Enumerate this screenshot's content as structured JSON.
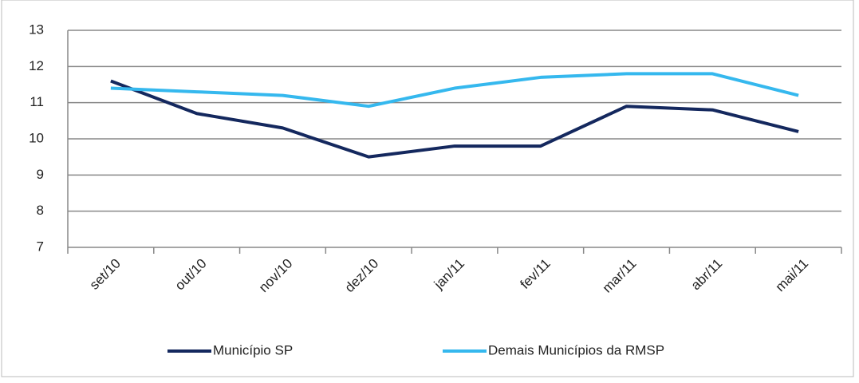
{
  "chart_data": {
    "type": "line",
    "categories": [
      "set/10",
      "out/10",
      "nov/10",
      "dez/10",
      "jan/11",
      "fev/11",
      "mar/11",
      "abr/11",
      "mai/11"
    ],
    "series": [
      {
        "name": "Município SP",
        "color": "#14285e",
        "values": [
          11.6,
          10.7,
          10.3,
          9.5,
          9.8,
          9.8,
          10.9,
          10.8,
          10.2
        ]
      },
      {
        "name": "Demais Municípios da RMSP",
        "color": "#35b8ee",
        "values": [
          11.4,
          11.3,
          11.2,
          10.9,
          11.4,
          11.7,
          11.8,
          11.8,
          11.2
        ]
      }
    ],
    "ylim": [
      7,
      13
    ],
    "yticks": [
      7,
      8,
      9,
      10,
      11,
      12,
      13
    ],
    "grid": true,
    "legend": "bottom"
  }
}
